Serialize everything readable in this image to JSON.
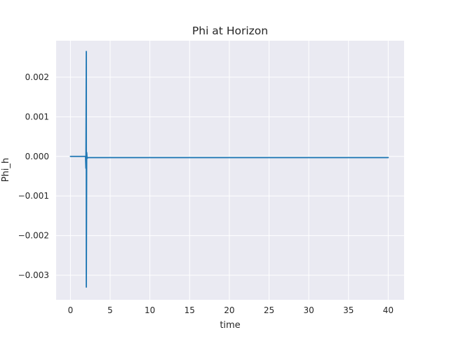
{
  "chart_data": {
    "type": "line",
    "title": "Phi at Horizon",
    "xlabel": "time",
    "ylabel": "Phi_h",
    "xlim": [
      -1.8,
      42
    ],
    "ylim": [
      -0.00362,
      0.00292
    ],
    "grid": true,
    "style": "seaborn-darkgrid",
    "colors": {
      "plot_bg": "#eaeaf2",
      "grid": "#ffffff",
      "line": "#1f77b4",
      "text": "#262626"
    },
    "x_ticks": [
      0,
      5,
      10,
      15,
      20,
      25,
      30,
      35,
      40
    ],
    "x_tick_labels": [
      "0",
      "5",
      "10",
      "15",
      "20",
      "25",
      "30",
      "35",
      "40"
    ],
    "y_ticks": [
      -0.003,
      -0.002,
      -0.001,
      0.0,
      0.001,
      0.002
    ],
    "y_tick_labels": [
      "−0.003",
      "−0.002",
      "−0.001",
      "0.000",
      "0.001",
      "0.002"
    ],
    "series": [
      {
        "x": [
          0,
          1.9,
          1.95,
          2.0,
          2.0,
          2.05,
          2.1,
          2.2,
          40
        ],
        "y": [
          0.0,
          0.0,
          -0.0003,
          0.00265,
          -0.0033,
          0.0001,
          -5e-05,
          -3e-05,
          -3e-05
        ]
      }
    ]
  }
}
